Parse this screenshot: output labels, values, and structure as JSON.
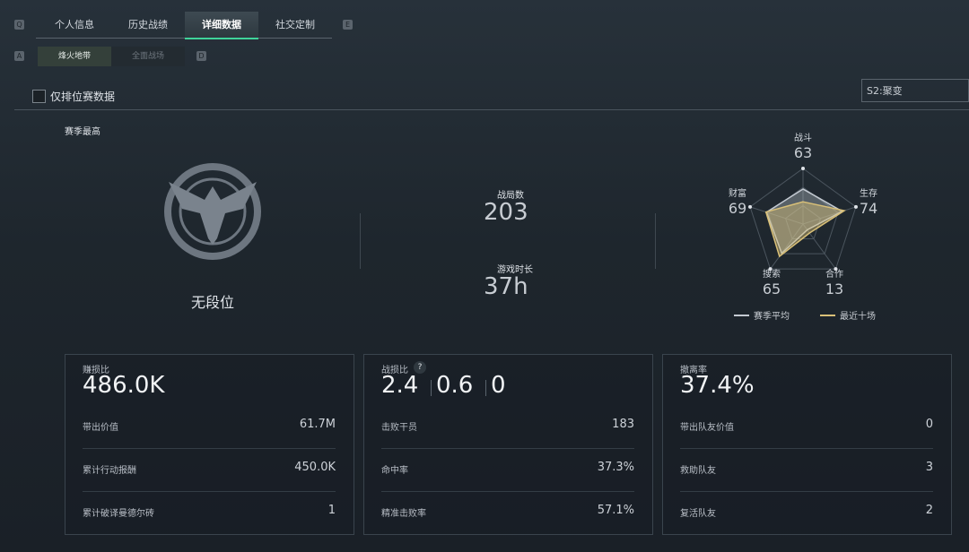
{
  "tabs": {
    "left_key": "Q",
    "items": [
      "个人信息",
      "历史战绩",
      "详细数据",
      "社交定制"
    ],
    "right_key": "E"
  },
  "subtabs": {
    "left_key": "A",
    "items": [
      "烽火地带",
      "全面战场"
    ],
    "right_key": "D"
  },
  "filter": {
    "label": "仅排位赛数据",
    "season": "S2:聚变"
  },
  "rank": {
    "heading": "赛季最高",
    "name": "无段位"
  },
  "stats": [
    {
      "label": "战局数",
      "value": "203"
    },
    {
      "label": "游戏时长",
      "value": "37h"
    }
  ],
  "radar": {
    "type": "radar",
    "axes": [
      "战斗",
      "生存",
      "合作",
      "搜索",
      "财富"
    ],
    "rlim": [
      0,
      100
    ],
    "series": [
      {
        "name": "赛季平均",
        "color": "#c4cad2",
        "values": [
          63,
          74,
          13,
          65,
          69
        ]
      },
      {
        "name": "最近十场",
        "color": "#d9c078",
        "values": [
          40,
          78,
          20,
          72,
          70
        ]
      }
    ]
  },
  "cards": [
    {
      "title": "赚损比",
      "main": [
        "486.0K"
      ],
      "rows": [
        [
          "带出价值",
          "61.7M"
        ],
        [
          "累计行动报酬",
          "450.0K"
        ],
        [
          "累计破译曼德尔砖",
          "1"
        ]
      ]
    },
    {
      "title": "战损比",
      "help": "?",
      "main": [
        "2.4",
        "0.6",
        "0"
      ],
      "rows": [
        [
          "击败干员",
          "183"
        ],
        [
          "命中率",
          "37.3%"
        ],
        [
          "精准击败率",
          "57.1%"
        ]
      ]
    },
    {
      "title": "撤离率",
      "main": [
        "37.4%"
      ],
      "rows": [
        [
          "带出队友价值",
          "0"
        ],
        [
          "救助队友",
          "3"
        ],
        [
          "复活队友",
          "2"
        ]
      ]
    }
  ]
}
